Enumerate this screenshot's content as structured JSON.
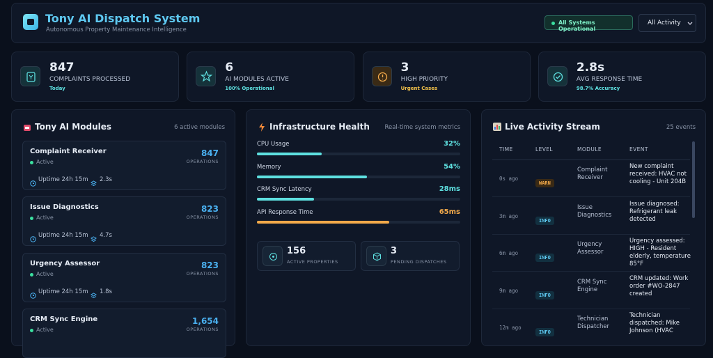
{
  "header": {
    "title": "Tony AI Dispatch System",
    "subtitle": "Autonomous Property Maintenance Intelligence",
    "status": "All Systems Operational",
    "filter": "All Activity"
  },
  "stats": [
    {
      "value": 847,
      "label": "COMPLAINTS PROCESSED",
      "sub": "Today"
    },
    {
      "value": 6,
      "label": "AI MODULES ACTIVE",
      "sub": "100% Operational"
    },
    {
      "value": 3,
      "label": "HIGH PRIORITY",
      "sub": "Urgent Cases"
    },
    {
      "value": "2.8s",
      "label": "AVG RESPONSE TIME",
      "sub": "98.7% Accuracy"
    }
  ],
  "modules": {
    "title": "Tony AI Modules",
    "count": "6 active modules",
    "items": [
      {
        "name": "Complaint Receiver",
        "status": "Active",
        "operations": "847",
        "operations_label": "OPERATIONS",
        "uptime": "Uptime 24h 15m",
        "latency": "2.3s"
      },
      {
        "name": "Issue Diagnostics",
        "status": "Active",
        "operations": "823",
        "operations_label": "OPERATIONS",
        "uptime": "Uptime 24h 15m",
        "latency": "4.7s"
      },
      {
        "name": "Urgency Assessor",
        "status": "Active",
        "operations": "823",
        "operations_label": "OPERATIONS",
        "uptime": "Uptime 24h 15m",
        "latency": "1.8s"
      },
      {
        "name": "CRM Sync Engine",
        "status": "Active",
        "operations": "1,654",
        "operations_label": "OPERATIONS"
      }
    ]
  },
  "infrastructure": {
    "title": "Infrastructure Health",
    "subtitle": "Real-time system metrics",
    "metrics": [
      {
        "name": "CPU Usage",
        "value": 32,
        "label": "32%",
        "color": "#5ee0e0"
      },
      {
        "name": "Memory",
        "value": 54,
        "label": "54%",
        "color": "#5ee0e0"
      },
      {
        "name": "CRM Sync Latency",
        "value": 28,
        "label": "28ms",
        "color": "#5ee0e0"
      },
      {
        "name": "API Response Time",
        "value": 65,
        "label": "65ms",
        "color": "#f2a94a"
      }
    ],
    "tiles": [
      {
        "value": 156,
        "label": "ACTIVE PROPERTIES"
      },
      {
        "value": 3,
        "label": "PENDING DISPATCHES"
      }
    ]
  },
  "activity": {
    "title": "Live Activity Stream",
    "count": "25 events",
    "columns": [
      "TIME",
      "LEVEL",
      "MODULE",
      "EVENT"
    ],
    "rows": [
      [
        "0s ago",
        "WARN",
        "Complaint Receiver",
        "New complaint received: HVAC not cooling - Unit 204B"
      ],
      [
        "3m ago",
        "INFO",
        "Issue Diagnostics",
        "Issue diagnosed: Refrigerant leak detected"
      ],
      [
        "6m ago",
        "INFO",
        "Urgency Assessor",
        "Urgency assessed: HIGH - Resident elderly, temperature 85°F"
      ],
      [
        "9m ago",
        "INFO",
        "CRM Sync Engine",
        "CRM updated: Work order #WO-2847 created"
      ],
      [
        "12m ago",
        "INFO",
        "Technician Dispatcher",
        "Technician dispatched: Mike Johnson (HVAC"
      ]
    ]
  }
}
